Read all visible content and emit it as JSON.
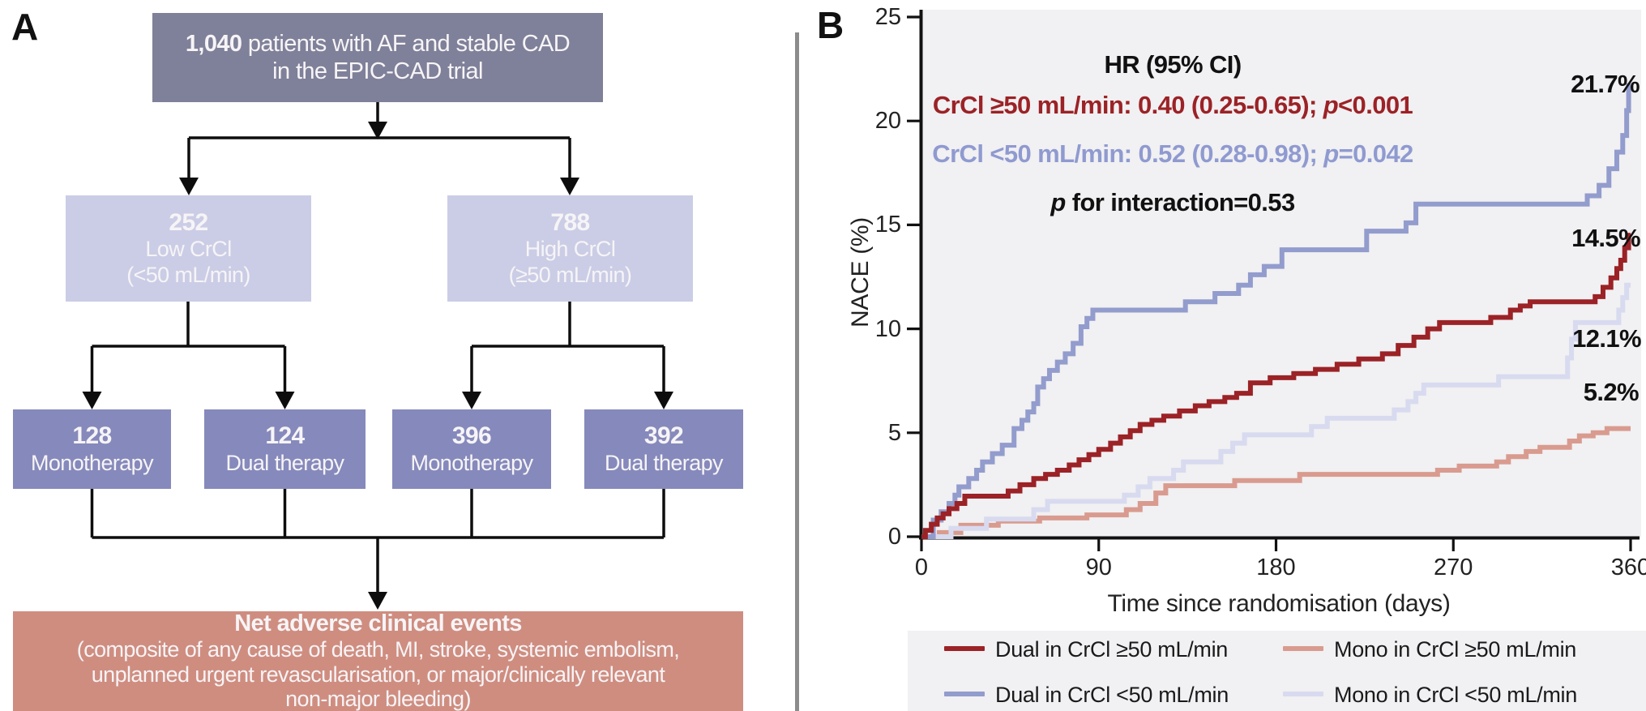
{
  "panel_a": {
    "label": "A",
    "top_box": {
      "num": "1,040",
      "rest": " patients with AF and stable CAD",
      "line2": "in the EPIC-CAD trial"
    },
    "mid_boxes": [
      {
        "num": "252",
        "line2": "Low CrCl",
        "line3": "(<50 mL/min)"
      },
      {
        "num": "788",
        "line2": "High CrCl",
        "line3": "(≥50 mL/min)"
      }
    ],
    "therapy_boxes": [
      {
        "num": "128",
        "label": "Monotherapy"
      },
      {
        "num": "124",
        "label": "Dual therapy"
      },
      {
        "num": "396",
        "label": "Monotherapy"
      },
      {
        "num": "392",
        "label": "Dual therapy"
      }
    ],
    "outcome_box": {
      "title": "Net adverse clinical events",
      "line2": "(composite of any cause of death, MI, stroke, systemic embolism,",
      "line3": "unplanned urgent revascularisation, or major/clinically relevant",
      "line4": "non-major bleeding)"
    },
    "colors": {
      "top_box": "#7f8099",
      "mid_box": "#cbcde6",
      "therapy_box": "#8689bb",
      "outcome_box": "#cf8d80"
    }
  },
  "panel_b": {
    "label": "B",
    "annotations": {
      "hr_title": "HR (95% CI)",
      "line_high": {
        "pre": "CrCl ≥50 mL/min: 0.40 (0.25-0.65); ",
        "p": "p",
        "post": "<0.001"
      },
      "line_low": {
        "pre": "CrCl <50 mL/min: 0.52 (0.28-0.98); ",
        "p": "p",
        "post": "=0.042"
      },
      "interaction": {
        "p": "p",
        "post": " for interaction=0.53"
      }
    }
  },
  "chart_data": {
    "type": "line",
    "subtype": "kaplan-meier-step",
    "title": "",
    "xlabel": "Time since randomisation (days)",
    "ylabel": "NACE (%)",
    "xlim": [
      0,
      360
    ],
    "ylim": [
      0,
      25
    ],
    "xticks": [
      0,
      90,
      180,
      270,
      360
    ],
    "yticks": [
      0,
      5,
      10,
      15,
      20,
      25
    ],
    "grid": false,
    "legend_position": "bottom",
    "plot_bg": "#f1f0f2",
    "annotations": [
      "HR (95% CI)",
      "CrCl ≥50 mL/min: 0.40 (0.25-0.65); p<0.001",
      "CrCl <50 mL/min: 0.52 (0.28-0.98); p=0.042",
      "p for interaction=0.53"
    ],
    "series": [
      {
        "name": "Dual in CrCl ≥50 mL/min",
        "color": "#9b2226",
        "final_label": "14.5%",
        "points": [
          [
            0,
            0
          ],
          [
            2,
            0.3
          ],
          [
            5,
            0.6
          ],
          [
            8,
            0.9
          ],
          [
            11,
            1.1
          ],
          [
            14,
            1.35
          ],
          [
            18,
            1.6
          ],
          [
            22,
            1.95
          ],
          [
            44,
            2.2
          ],
          [
            50,
            2.5
          ],
          [
            57,
            2.8
          ],
          [
            63,
            3.0
          ],
          [
            69,
            3.2
          ],
          [
            75,
            3.45
          ],
          [
            80,
            3.7
          ],
          [
            85,
            3.95
          ],
          [
            90,
            4.2
          ],
          [
            96,
            4.5
          ],
          [
            101,
            4.8
          ],
          [
            106,
            5.1
          ],
          [
            111,
            5.4
          ],
          [
            117,
            5.6
          ],
          [
            123,
            5.8
          ],
          [
            131,
            6.05
          ],
          [
            139,
            6.3
          ],
          [
            146,
            6.5
          ],
          [
            154,
            6.7
          ],
          [
            160,
            6.9
          ],
          [
            167,
            7.4
          ],
          [
            177,
            7.65
          ],
          [
            189,
            7.85
          ],
          [
            200,
            8.05
          ],
          [
            211,
            8.3
          ],
          [
            222,
            8.55
          ],
          [
            234,
            8.8
          ],
          [
            242,
            9.2
          ],
          [
            250,
            9.6
          ],
          [
            257,
            10.0
          ],
          [
            263,
            10.3
          ],
          [
            289,
            10.55
          ],
          [
            299,
            10.9
          ],
          [
            304,
            11.1
          ],
          [
            309,
            11.3
          ],
          [
            342,
            11.55
          ],
          [
            346,
            12.0
          ],
          [
            350,
            12.45
          ],
          [
            353,
            12.9
          ],
          [
            355,
            13.3
          ],
          [
            357,
            13.9
          ],
          [
            359,
            14.5
          ]
        ]
      },
      {
        "name": "Mono in CrCl ≥50 mL/min",
        "color": "#d99b8f",
        "final_label": "5.2%",
        "points": [
          [
            0,
            0
          ],
          [
            9,
            0.2
          ],
          [
            20,
            0.55
          ],
          [
            39,
            0.75
          ],
          [
            60,
            0.9
          ],
          [
            84,
            1.05
          ],
          [
            104,
            1.3
          ],
          [
            111,
            1.6
          ],
          [
            119,
            2.1
          ],
          [
            124,
            2.45
          ],
          [
            159,
            2.7
          ],
          [
            192,
            3.0
          ],
          [
            262,
            3.2
          ],
          [
            273,
            3.4
          ],
          [
            292,
            3.6
          ],
          [
            298,
            3.85
          ],
          [
            307,
            4.1
          ],
          [
            314,
            4.3
          ],
          [
            329,
            4.6
          ],
          [
            334,
            4.85
          ],
          [
            341,
            5.0
          ],
          [
            348,
            5.2
          ]
        ]
      },
      {
        "name": "Dual in CrCl <50 mL/min",
        "color": "#929ccd",
        "final_label": "21.7%",
        "points": [
          [
            0,
            0
          ],
          [
            6,
            0.8
          ],
          [
            10,
            1.2
          ],
          [
            14,
            1.6
          ],
          [
            17,
            2.0
          ],
          [
            19,
            2.4
          ],
          [
            24,
            2.8
          ],
          [
            28,
            3.2
          ],
          [
            31,
            3.6
          ],
          [
            36,
            4.0
          ],
          [
            41,
            4.4
          ],
          [
            47,
            5.2
          ],
          [
            51,
            5.6
          ],
          [
            54,
            6.0
          ],
          [
            57,
            6.4
          ],
          [
            59,
            7.2
          ],
          [
            62,
            7.6
          ],
          [
            65,
            8.0
          ],
          [
            69,
            8.4
          ],
          [
            73,
            8.8
          ],
          [
            77,
            9.3
          ],
          [
            81,
            10.1
          ],
          [
            84,
            10.5
          ],
          [
            87,
            10.9
          ],
          [
            134,
            11.3
          ],
          [
            149,
            11.7
          ],
          [
            161,
            12.1
          ],
          [
            167,
            12.6
          ],
          [
            174,
            13.0
          ],
          [
            183,
            13.8
          ],
          [
            226,
            14.7
          ],
          [
            246,
            15.1
          ],
          [
            251,
            16.0
          ],
          [
            338,
            16.4
          ],
          [
            344,
            16.9
          ],
          [
            349,
            17.7
          ],
          [
            353,
            18.5
          ],
          [
            356,
            19.3
          ],
          [
            358,
            20.5
          ],
          [
            359,
            21.7
          ]
        ]
      },
      {
        "name": "Mono in CrCl <50 mL/min",
        "color": "#d8daf0",
        "final_label": "12.1%",
        "points": [
          [
            0,
            0
          ],
          [
            15,
            0.4
          ],
          [
            33,
            0.85
          ],
          [
            57,
            1.3
          ],
          [
            64,
            1.7
          ],
          [
            103,
            2.0
          ],
          [
            110,
            2.4
          ],
          [
            116,
            2.8
          ],
          [
            128,
            3.2
          ],
          [
            133,
            3.6
          ],
          [
            152,
            4.1
          ],
          [
            158,
            4.5
          ],
          [
            164,
            4.9
          ],
          [
            198,
            5.3
          ],
          [
            206,
            5.7
          ],
          [
            240,
            6.1
          ],
          [
            247,
            6.5
          ],
          [
            251,
            6.9
          ],
          [
            255,
            7.3
          ],
          [
            293,
            7.7
          ],
          [
            328,
            8.6
          ],
          [
            330,
            9.5
          ],
          [
            332,
            10.3
          ],
          [
            354,
            10.9
          ],
          [
            356,
            11.5
          ],
          [
            358,
            12.1
          ]
        ]
      }
    ]
  }
}
